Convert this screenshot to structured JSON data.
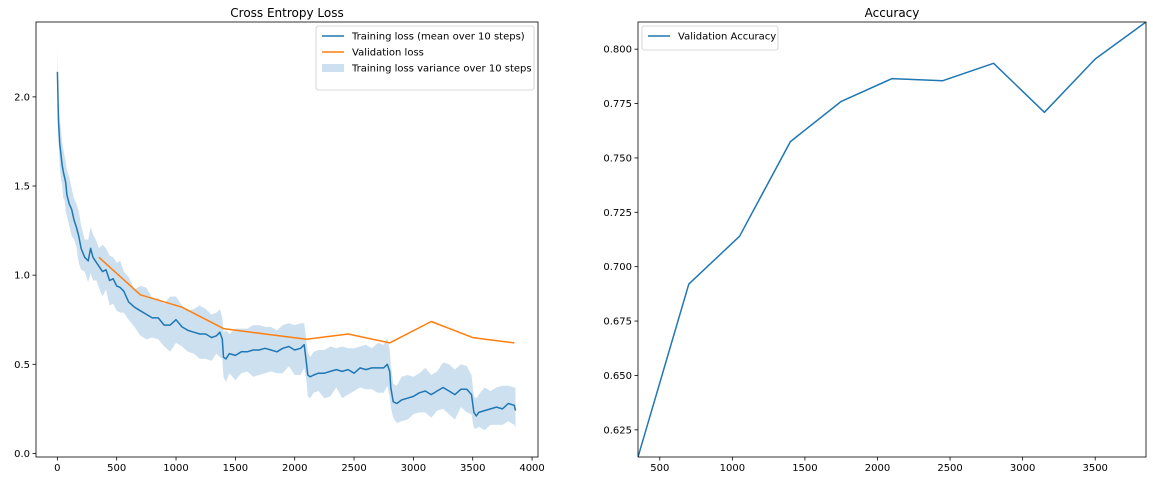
{
  "chart_data": [
    {
      "type": "line",
      "title": "Cross Entropy Loss",
      "xlabel": "",
      "ylabel": "",
      "xlim": [
        -180,
        4050
      ],
      "ylim": [
        -0.02,
        2.42
      ],
      "x_ticks": [
        0,
        500,
        1000,
        1500,
        2000,
        2500,
        3000,
        3500,
        4000
      ],
      "x_tick_labels": [
        "0",
        "500",
        "1000",
        "1500",
        "2000",
        "2500",
        "3000",
        "3500",
        "4000"
      ],
      "y_ticks": [
        0.0,
        0.5,
        1.0,
        1.5,
        2.0
      ],
      "y_tick_labels": [
        "0.0",
        "0.5",
        "1.0",
        "1.5",
        "2.0"
      ],
      "grid": false,
      "legend_position": "top-right",
      "series": [
        {
          "name": "Training loss (mean over 10 steps)",
          "type": "line",
          "color": "#1f77b4",
          "x": [
            0,
            10,
            20,
            30,
            40,
            50,
            60,
            70,
            80,
            100,
            120,
            140,
            160,
            180,
            200,
            230,
            260,
            280,
            300,
            330,
            350,
            380,
            410,
            440,
            470,
            500,
            530,
            560,
            600,
            650,
            700,
            750,
            800,
            850,
            900,
            950,
            1000,
            1050,
            1100,
            1150,
            1200,
            1250,
            1300,
            1340,
            1370,
            1390,
            1400,
            1420,
            1450,
            1500,
            1550,
            1600,
            1650,
            1700,
            1750,
            1800,
            1850,
            1900,
            1950,
            2000,
            2050,
            2080,
            2100,
            2110,
            2130,
            2160,
            2200,
            2250,
            2300,
            2350,
            2400,
            2450,
            2500,
            2550,
            2600,
            2650,
            2700,
            2750,
            2780,
            2800,
            2810,
            2830,
            2860,
            2900,
            2950,
            3000,
            3050,
            3100,
            3150,
            3200,
            3250,
            3300,
            3350,
            3400,
            3450,
            3490,
            3510,
            3530,
            3550,
            3600,
            3650,
            3700,
            3750,
            3800,
            3850,
            3860
          ],
          "values": [
            2.14,
            1.86,
            1.74,
            1.68,
            1.62,
            1.58,
            1.55,
            1.52,
            1.45,
            1.4,
            1.37,
            1.31,
            1.27,
            1.22,
            1.15,
            1.1,
            1.08,
            1.15,
            1.1,
            1.07,
            1.05,
            1.02,
            1.03,
            0.97,
            0.98,
            0.94,
            0.93,
            0.91,
            0.85,
            0.82,
            0.8,
            0.78,
            0.76,
            0.76,
            0.72,
            0.72,
            0.75,
            0.71,
            0.69,
            0.68,
            0.67,
            0.67,
            0.65,
            0.66,
            0.68,
            0.64,
            0.54,
            0.53,
            0.56,
            0.55,
            0.57,
            0.57,
            0.58,
            0.58,
            0.59,
            0.58,
            0.57,
            0.59,
            0.6,
            0.58,
            0.59,
            0.61,
            0.5,
            0.44,
            0.43,
            0.44,
            0.45,
            0.45,
            0.46,
            0.47,
            0.46,
            0.47,
            0.45,
            0.48,
            0.47,
            0.48,
            0.48,
            0.48,
            0.5,
            0.46,
            0.37,
            0.29,
            0.28,
            0.3,
            0.31,
            0.32,
            0.34,
            0.35,
            0.33,
            0.35,
            0.37,
            0.35,
            0.33,
            0.36,
            0.36,
            0.33,
            0.23,
            0.21,
            0.23,
            0.24,
            0.25,
            0.26,
            0.25,
            0.28,
            0.27,
            0.24
          ]
        },
        {
          "name": "Validation loss",
          "type": "line",
          "color": "#ff7f0e",
          "x": [
            350,
            700,
            1050,
            1400,
            1750,
            2100,
            2450,
            2800,
            3150,
            3500,
            3850
          ],
          "values": [
            1.1,
            0.89,
            0.82,
            0.7,
            0.67,
            0.64,
            0.67,
            0.62,
            0.74,
            0.65,
            0.62
          ]
        },
        {
          "name": "Training loss variance over 10 steps",
          "type": "band",
          "color": "#b8d3ea",
          "x": [
            0,
            10,
            20,
            30,
            40,
            50,
            60,
            70,
            80,
            100,
            120,
            140,
            160,
            180,
            200,
            230,
            260,
            280,
            300,
            330,
            350,
            380,
            410,
            440,
            470,
            500,
            530,
            560,
            600,
            650,
            700,
            750,
            800,
            850,
            900,
            950,
            1000,
            1050,
            1100,
            1150,
            1200,
            1250,
            1300,
            1340,
            1370,
            1390,
            1400,
            1420,
            1450,
            1500,
            1550,
            1600,
            1650,
            1700,
            1750,
            1800,
            1850,
            1900,
            1950,
            2000,
            2050,
            2080,
            2100,
            2110,
            2130,
            2160,
            2200,
            2250,
            2300,
            2350,
            2400,
            2450,
            2500,
            2550,
            2600,
            2650,
            2700,
            2750,
            2780,
            2800,
            2810,
            2830,
            2860,
            2900,
            2950,
            3000,
            3050,
            3100,
            3150,
            3200,
            3250,
            3300,
            3350,
            3400,
            3450,
            3490,
            3510,
            3530,
            3550,
            3600,
            3650,
            3700,
            3750,
            3800,
            3850,
            3860
          ],
          "lower": [
            2.01,
            1.76,
            1.61,
            1.54,
            1.51,
            1.43,
            1.42,
            1.36,
            1.33,
            1.28,
            1.22,
            1.2,
            1.16,
            1.07,
            1.03,
            1.02,
            0.96,
            1.01,
            0.97,
            0.97,
            0.93,
            0.88,
            0.92,
            0.83,
            0.84,
            0.8,
            0.79,
            0.79,
            0.75,
            0.71,
            0.66,
            0.64,
            0.65,
            0.64,
            0.6,
            0.57,
            0.62,
            0.6,
            0.57,
            0.56,
            0.53,
            0.53,
            0.52,
            0.56,
            0.54,
            0.53,
            0.43,
            0.4,
            0.45,
            0.41,
            0.45,
            0.46,
            0.43,
            0.44,
            0.45,
            0.46,
            0.45,
            0.45,
            0.49,
            0.44,
            0.44,
            0.48,
            0.4,
            0.32,
            0.31,
            0.34,
            0.35,
            0.31,
            0.32,
            0.37,
            0.31,
            0.33,
            0.35,
            0.37,
            0.36,
            0.36,
            0.34,
            0.34,
            0.38,
            0.32,
            0.26,
            0.2,
            0.17,
            0.18,
            0.19,
            0.22,
            0.23,
            0.23,
            0.2,
            0.24,
            0.25,
            0.22,
            0.19,
            0.26,
            0.23,
            0.22,
            0.14,
            0.14,
            0.15,
            0.13,
            0.16,
            0.16,
            0.16,
            0.18,
            0.16,
            0.14
          ],
          "upper": [
            2.27,
            1.97,
            1.87,
            1.82,
            1.75,
            1.71,
            1.67,
            1.64,
            1.59,
            1.55,
            1.49,
            1.43,
            1.4,
            1.36,
            1.28,
            1.2,
            1.2,
            1.27,
            1.23,
            1.19,
            1.15,
            1.17,
            1.15,
            1.11,
            1.1,
            1.07,
            1.08,
            1.02,
            0.99,
            0.92,
            0.94,
            0.93,
            0.87,
            0.87,
            0.84,
            0.88,
            0.88,
            0.83,
            0.8,
            0.81,
            0.83,
            0.81,
            0.78,
            0.79,
            0.81,
            0.76,
            0.68,
            0.69,
            0.67,
            0.7,
            0.7,
            0.7,
            0.72,
            0.72,
            0.71,
            0.71,
            0.69,
            0.72,
            0.73,
            0.72,
            0.73,
            0.73,
            0.62,
            0.57,
            0.54,
            0.57,
            0.58,
            0.58,
            0.6,
            0.59,
            0.6,
            0.59,
            0.59,
            0.6,
            0.61,
            0.59,
            0.62,
            0.61,
            0.65,
            0.58,
            0.5,
            0.39,
            0.38,
            0.43,
            0.44,
            0.43,
            0.45,
            0.48,
            0.44,
            0.46,
            0.51,
            0.5,
            0.47,
            0.5,
            0.49,
            0.44,
            0.32,
            0.31,
            0.33,
            0.37,
            0.35,
            0.37,
            0.38,
            0.38,
            0.37,
            0.37
          ]
        }
      ]
    },
    {
      "type": "line",
      "title": "Accuracy",
      "xlabel": "",
      "ylabel": "",
      "xlim": [
        350,
        3850
      ],
      "ylim": [
        0.6125,
        0.8125
      ],
      "x_ticks": [
        500,
        1000,
        1500,
        2000,
        2500,
        3000,
        3500
      ],
      "x_tick_labels": [
        "500",
        "1000",
        "1500",
        "2000",
        "2500",
        "3000",
        "3500"
      ],
      "y_ticks": [
        0.625,
        0.65,
        0.675,
        0.7,
        0.725,
        0.75,
        0.775,
        0.8
      ],
      "y_tick_labels": [
        "0.625",
        "0.650",
        "0.675",
        "0.700",
        "0.725",
        "0.750",
        "0.775",
        "0.800"
      ],
      "grid": false,
      "legend_position": "top-left",
      "series": [
        {
          "name": "Validation Accuracy",
          "type": "line",
          "color": "#1f77b4",
          "x": [
            350,
            700,
            1050,
            1400,
            1750,
            2100,
            2450,
            2800,
            3150,
            3500,
            3850
          ],
          "values": [
            0.6125,
            0.692,
            0.714,
            0.7575,
            0.776,
            0.7865,
            0.7855,
            0.7935,
            0.771,
            0.7955,
            0.8125
          ]
        }
      ]
    }
  ]
}
